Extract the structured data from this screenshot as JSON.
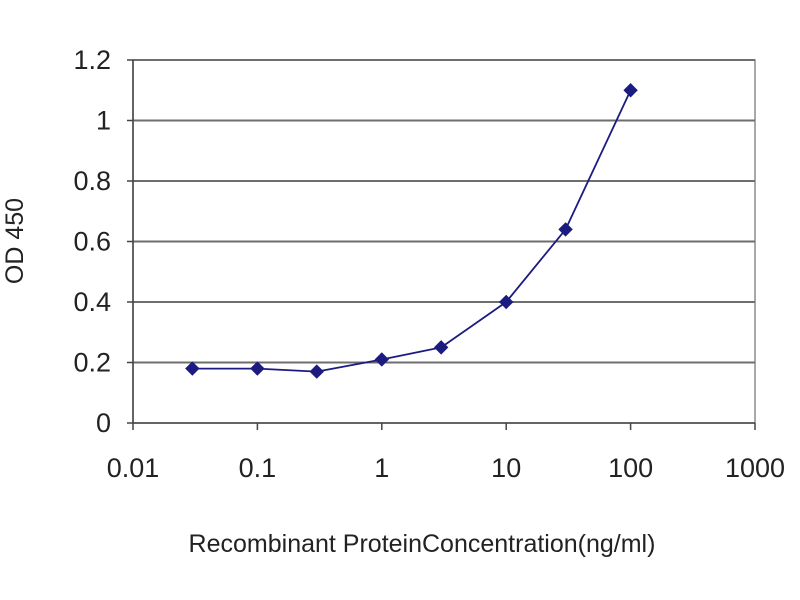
{
  "chart_data": {
    "type": "line",
    "title": "",
    "xlabel": "Recombinant ProteinConcentration(ng/ml)",
    "ylabel": "OD 450",
    "x_scale": "log",
    "xlim": [
      0.01,
      1000
    ],
    "ylim": [
      0,
      1.2
    ],
    "x_ticks": [
      0.01,
      0.1,
      1,
      10,
      100,
      1000
    ],
    "x_tick_labels": [
      "0.01",
      "0.1",
      "1",
      "10",
      "100",
      "1000"
    ],
    "y_ticks": [
      0,
      0.2,
      0.4,
      0.6,
      0.8,
      1,
      1.2
    ],
    "y_tick_labels": [
      "0",
      "0.2",
      "0.4",
      "0.6",
      "0.8",
      "1",
      "1.2"
    ],
    "grid": "horizontal",
    "legend": "none",
    "series": [
      {
        "x": [
          0.03,
          0.1,
          0.3,
          1,
          3,
          10,
          30,
          100
        ],
        "y": [
          0.18,
          0.18,
          0.17,
          0.21,
          0.25,
          0.4,
          0.64,
          1.1
        ]
      }
    ],
    "colors": {
      "series": "#1c1c80",
      "grid": "#6e6e6e",
      "plot_border": "#8c8c8c",
      "axis": "#444444"
    }
  }
}
